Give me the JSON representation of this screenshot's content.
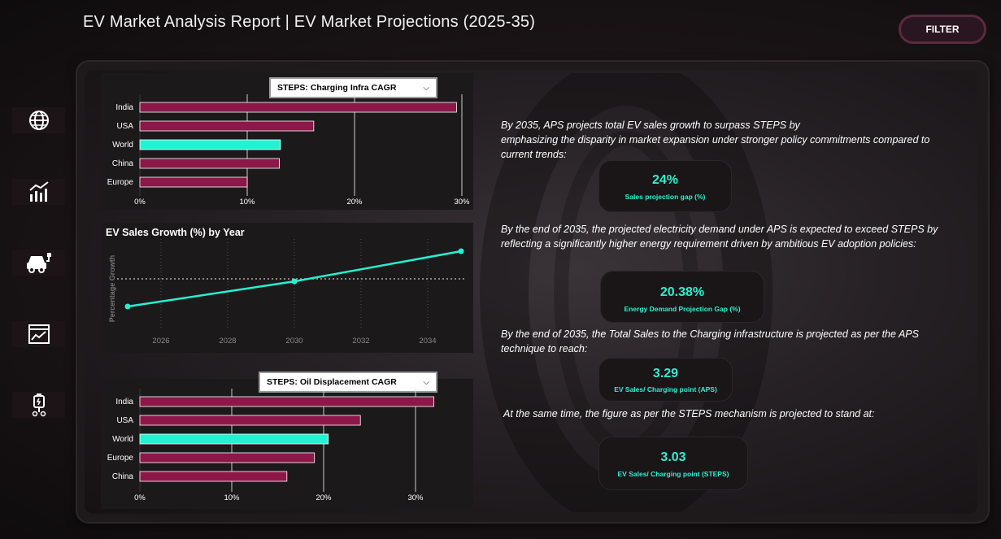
{
  "header": {
    "title": "EV Market Analysis Report | EV Market Projections (2025-35)",
    "filter_label": "FILTER"
  },
  "sidebar": {
    "items": [
      {
        "icon": "globe-icon"
      },
      {
        "icon": "bar-chart-icon"
      },
      {
        "icon": "ev-car-icon"
      },
      {
        "icon": "line-chart-icon"
      },
      {
        "icon": "charging-station-icon"
      }
    ]
  },
  "colors": {
    "bar": "#8b1848",
    "highlight": "#22f2d2",
    "accent_text": "#2ef0d0"
  },
  "charging_chart": {
    "dropdown": "STEPS: Charging Infra CAGR",
    "x_ticks": [
      "0%",
      "10%",
      "20%",
      "30%"
    ]
  },
  "oil_chart": {
    "dropdown": "STEPS: Oil Displacement CAGR",
    "x_ticks": [
      "0%",
      "10%",
      "20%",
      "30%"
    ]
  },
  "line_chart": {
    "title": "EV Sales Growth (%) by Year",
    "ylabel": "Percentage Growth",
    "x_ticks": [
      "2026",
      "2028",
      "2030",
      "2032",
      "2034"
    ]
  },
  "chart_data": [
    {
      "type": "bar",
      "orientation": "horizontal",
      "categories": [
        "India",
        "USA",
        "World",
        "China",
        "Europe"
      ],
      "values": [
        29.5,
        16.2,
        13.1,
        13.0,
        10.0
      ],
      "highlight": "World",
      "xlim": [
        0,
        30
      ],
      "unit": "%"
    },
    {
      "type": "line",
      "x": [
        2025,
        2030,
        2035
      ],
      "y": [
        1,
        2,
        3.2
      ],
      "xlim": [
        2025,
        2035
      ],
      "reference_line": "dotted",
      "ylabel": "Percentage Growth"
    },
    {
      "type": "bar",
      "orientation": "horizontal",
      "categories": [
        "India",
        "USA",
        "World",
        "Europe",
        "China"
      ],
      "values": [
        32,
        24,
        20.5,
        19,
        16
      ],
      "highlight": "World",
      "xlim": [
        0,
        35
      ],
      "unit": "%"
    }
  ],
  "insights": {
    "p1": [
      "By 2035, APS projects total EV sales growth to surpass STEPS by",
      "emphasizing the disparity in market expansion under  stronger policy commitments compared to",
      "current trends:"
    ],
    "kpi1": {
      "value": "24%",
      "label": "Sales projection gap (%)"
    },
    "p2": [
      "By the end of 2035, the projected electricity demand under APS is expected to exceed STEPS by",
      "reflecting a significantly higher energy requirement driven by ambitious EV adoption policies:"
    ],
    "kpi2": {
      "value": "20.38%",
      "label": "Energy Demand Projection Gap (%)"
    },
    "p3": [
      "By the end of 2035, the Total Sales to the Charging infrastructure is projected as per the APS",
      "technique to reach:"
    ],
    "kpi3": {
      "value": "3.29",
      "label": "EV Sales/ Charging point (APS)"
    },
    "p4": [
      " At the same time, the figure as per the STEPS mechanism is projected to stand at:"
    ],
    "kpi4": {
      "value": "3.03",
      "label": "EV Sales/ Charging point (STEPS)"
    }
  }
}
